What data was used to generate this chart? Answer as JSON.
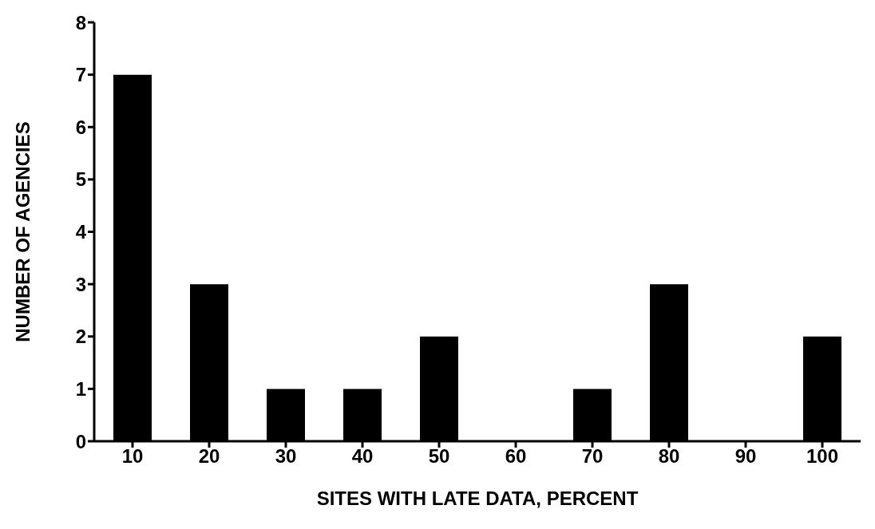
{
  "chart_data": {
    "type": "bar",
    "xlabel": "SITES WITH LATE DATA, PERCENT",
    "ylabel": "NUMBER OF AGENCIES",
    "categories": [
      "10",
      "20",
      "30",
      "40",
      "50",
      "60",
      "70",
      "80",
      "90",
      "100"
    ],
    "values": [
      7,
      3,
      1,
      1,
      2,
      0,
      1,
      3,
      0,
      2
    ],
    "color": "#000000",
    "ylim": [
      0,
      8
    ],
    "yticks": [
      0,
      1,
      2,
      3,
      4,
      5,
      6,
      7,
      8
    ],
    "grid": false,
    "legend": false
  }
}
